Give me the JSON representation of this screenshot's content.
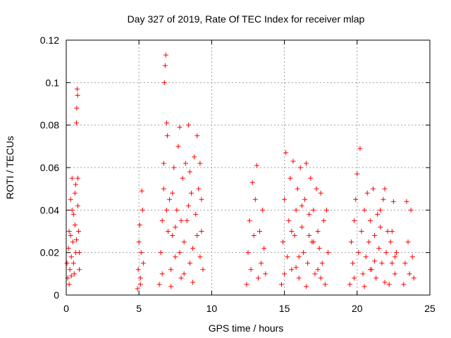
{
  "chart_data": {
    "type": "scatter",
    "title": "Day 327 of 2019, Rate Of TEC Index for receiver mlap",
    "xlabel": "GPS time / hours",
    "ylabel": "ROTI / TECUs",
    "xlim": [
      0,
      25
    ],
    "ylim": [
      0,
      0.12
    ],
    "x_ticks": [
      0,
      5,
      10,
      15,
      20,
      25
    ],
    "x_tick_labels": [
      "0",
      "5",
      "10",
      "15",
      "20",
      "25"
    ],
    "y_ticks": [
      0,
      0.02,
      0.04,
      0.06,
      0.08,
      0.1,
      0.12
    ],
    "y_tick_labels": [
      "0",
      "0.02",
      "0.04",
      "0.06",
      "0.08",
      "0.1",
      "0.12"
    ],
    "grid": true,
    "marker": "plus",
    "colors": {
      "points": "#ff0000",
      "grid": "#a0a0a0",
      "axis": "#000000"
    },
    "series": [
      {
        "points": [
          [
            0.05,
            0.015
          ],
          [
            0.1,
            0.008
          ],
          [
            0.15,
            0.022
          ],
          [
            0.2,
            0.03
          ],
          [
            0.25,
            0.012
          ],
          [
            0.3,
            0.045
          ],
          [
            0.35,
            0.018
          ],
          [
            0.4,
            0.055
          ],
          [
            0.45,
            0.025
          ],
          [
            0.5,
            0.038
          ],
          [
            0.55,
            0.01
          ],
          [
            0.6,
            0.048
          ],
          [
            0.65,
            0.02
          ],
          [
            0.7,
            0.081
          ],
          [
            0.72,
            0.088
          ],
          [
            0.75,
            0.097
          ],
          [
            0.78,
            0.094
          ],
          [
            0.8,
            0.055
          ],
          [
            0.85,
            0.03
          ],
          [
            0.9,
            0.012
          ],
          [
            0.2,
            0.005
          ],
          [
            0.3,
            0.028
          ],
          [
            0.4,
            0.04
          ],
          [
            0.5,
            0.015
          ],
          [
            0.6,
            0.033
          ],
          [
            0.7,
            0.026
          ],
          [
            0.8,
            0.042
          ],
          [
            0.9,
            0.02
          ],
          [
            0.35,
            0.009
          ],
          [
            0.65,
            0.052
          ],
          [
            4.9,
            0.003
          ],
          [
            4.95,
            0.012
          ],
          [
            5.0,
            0.025
          ],
          [
            5.05,
            0.033
          ],
          [
            5.1,
            0.008
          ],
          [
            5.15,
            0.02
          ],
          [
            5.2,
            0.049
          ],
          [
            5.25,
            0.04
          ],
          [
            5.3,
            0.015
          ],
          [
            5.1,
            0.005
          ],
          [
            6.4,
            0.005
          ],
          [
            6.5,
            0.02
          ],
          [
            6.6,
            0.035
          ],
          [
            6.7,
            0.05
          ],
          [
            6.75,
            0.1
          ],
          [
            6.8,
            0.108
          ],
          [
            6.85,
            0.113
          ],
          [
            6.9,
            0.081
          ],
          [
            6.95,
            0.075
          ],
          [
            7.0,
            0.03
          ],
          [
            7.1,
            0.045
          ],
          [
            7.2,
            0.012
          ],
          [
            7.3,
            0.028
          ],
          [
            7.4,
            0.06
          ],
          [
            7.5,
            0.018
          ],
          [
            7.6,
            0.04
          ],
          [
            7.7,
            0.07
          ],
          [
            7.8,
            0.079
          ],
          [
            7.9,
            0.008
          ],
          [
            8.0,
            0.055
          ],
          [
            8.1,
            0.025
          ],
          [
            8.2,
            0.062
          ],
          [
            8.3,
            0.035
          ],
          [
            8.4,
            0.08
          ],
          [
            8.5,
            0.015
          ],
          [
            8.6,
            0.048
          ],
          [
            8.7,
            0.022
          ],
          [
            8.8,
            0.065
          ],
          [
            8.9,
            0.038
          ],
          [
            9.0,
            0.075
          ],
          [
            9.1,
            0.05
          ],
          [
            9.2,
            0.062
          ],
          [
            9.3,
            0.03
          ],
          [
            9.4,
            0.012
          ],
          [
            6.6,
            0.01
          ],
          [
            6.9,
            0.04
          ],
          [
            7.2,
            0.004
          ],
          [
            7.5,
            0.032
          ],
          [
            7.8,
            0.02
          ],
          [
            8.1,
            0.01
          ],
          [
            8.4,
            0.042
          ],
          [
            8.7,
            0.006
          ],
          [
            9.0,
            0.028
          ],
          [
            9.3,
            0.045
          ],
          [
            6.7,
            0.062
          ],
          [
            7.3,
            0.048
          ],
          [
            7.9,
            0.035
          ],
          [
            8.5,
            0.058
          ],
          [
            9.2,
            0.018
          ],
          [
            12.4,
            0.005
          ],
          [
            12.5,
            0.02
          ],
          [
            12.6,
            0.035
          ],
          [
            12.7,
            0.012
          ],
          [
            12.8,
            0.053
          ],
          [
            12.9,
            0.028
          ],
          [
            13.0,
            0.045
          ],
          [
            13.1,
            0.061
          ],
          [
            13.2,
            0.008
          ],
          [
            13.3,
            0.03
          ],
          [
            13.4,
            0.015
          ],
          [
            13.5,
            0.04
          ],
          [
            13.6,
            0.022
          ],
          [
            13.7,
            0.01
          ],
          [
            14.8,
            0.005
          ],
          [
            14.9,
            0.025
          ],
          [
            15.0,
            0.045
          ],
          [
            15.1,
            0.067
          ],
          [
            15.2,
            0.018
          ],
          [
            15.3,
            0.035
          ],
          [
            15.4,
            0.055
          ],
          [
            15.5,
            0.012
          ],
          [
            15.6,
            0.063
          ],
          [
            15.7,
            0.028
          ],
          [
            15.8,
            0.04
          ],
          [
            15.9,
            0.05
          ],
          [
            16.0,
            0.008
          ],
          [
            16.1,
            0.06
          ],
          [
            16.2,
            0.032
          ],
          [
            16.3,
            0.02
          ],
          [
            16.4,
            0.045
          ],
          [
            16.5,
            0.062
          ],
          [
            16.6,
            0.015
          ],
          [
            16.7,
            0.038
          ],
          [
            16.8,
            0.055
          ],
          [
            16.9,
            0.025
          ],
          [
            17.0,
            0.04
          ],
          [
            17.1,
            0.01
          ],
          [
            17.2,
            0.05
          ],
          [
            17.3,
            0.03
          ],
          [
            17.4,
            0.022
          ],
          [
            17.5,
            0.048
          ],
          [
            17.6,
            0.015
          ],
          [
            17.7,
            0.035
          ],
          [
            17.8,
            0.005
          ],
          [
            17.9,
            0.04
          ],
          [
            18.0,
            0.02
          ],
          [
            15.0,
            0.01
          ],
          [
            15.5,
            0.03
          ],
          [
            16.0,
            0.018
          ],
          [
            16.5,
            0.004
          ],
          [
            17.0,
            0.025
          ],
          [
            17.5,
            0.008
          ],
          [
            15.8,
            0.013
          ],
          [
            16.7,
            0.028
          ],
          [
            17.3,
            0.012
          ],
          [
            16.2,
            0.042
          ],
          [
            19.5,
            0.005
          ],
          [
            19.6,
            0.025
          ],
          [
            19.7,
            0.015
          ],
          [
            19.8,
            0.035
          ],
          [
            19.9,
            0.045
          ],
          [
            20.0,
            0.057
          ],
          [
            20.1,
            0.02
          ],
          [
            20.2,
            0.069
          ],
          [
            20.3,
            0.03
          ],
          [
            20.4,
            0.01
          ],
          [
            20.5,
            0.04
          ],
          [
            20.6,
            0.018
          ],
          [
            20.7,
            0.048
          ],
          [
            20.8,
            0.025
          ],
          [
            20.9,
            0.035
          ],
          [
            21.0,
            0.012
          ],
          [
            21.1,
            0.05
          ],
          [
            21.2,
            0.028
          ],
          [
            21.3,
            0.008
          ],
          [
            21.4,
            0.038
          ],
          [
            21.5,
            0.022
          ],
          [
            21.6,
            0.032
          ],
          [
            21.7,
            0.015
          ],
          [
            21.8,
            0.045
          ],
          [
            21.9,
            0.05
          ],
          [
            22.0,
            0.02
          ],
          [
            22.1,
            0.03
          ],
          [
            22.2,
            0.005
          ],
          [
            22.3,
            0.025
          ],
          [
            22.4,
            0.015
          ],
          [
            22.5,
            0.044
          ],
          [
            22.6,
            0.01
          ],
          [
            22.7,
            0.02
          ],
          [
            23.2,
            0.005
          ],
          [
            23.3,
            0.015
          ],
          [
            23.4,
            0.044
          ],
          [
            23.5,
            0.025
          ],
          [
            23.6,
            0.01
          ],
          [
            23.7,
            0.04
          ],
          [
            23.8,
            0.018
          ],
          [
            23.9,
            0.008
          ],
          [
            19.8,
            0.008
          ],
          [
            20.5,
            0.004
          ],
          [
            21.2,
            0.016
          ],
          [
            21.9,
            0.006
          ],
          [
            22.4,
            0.03
          ],
          [
            20.9,
            0.012
          ],
          [
            21.6,
            0.04
          ],
          [
            22.6,
            0.018
          ]
        ]
      }
    ]
  }
}
